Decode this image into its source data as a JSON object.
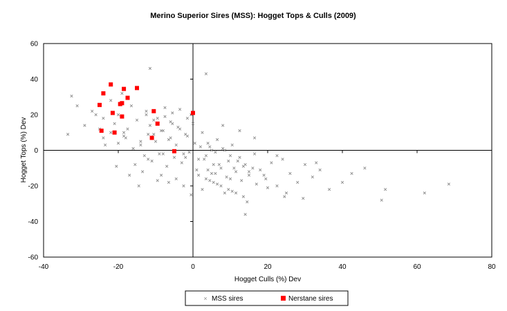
{
  "chart_data": {
    "type": "scatter",
    "title": "Merino Superior Sires (MSS): Hogget Tops & Culls  (2009)",
    "xlabel": "Hogget Culls (%) Dev",
    "ylabel": "Hogget Tops (%) Dev",
    "xlim": [
      -40,
      80
    ],
    "ylim": [
      -60,
      60
    ],
    "x_ticks": [
      "-40",
      "-20",
      "0",
      "20",
      "40",
      "60",
      "80"
    ],
    "y_ticks": [
      "60",
      "40",
      "20",
      "0",
      "-20",
      "-40",
      "-60"
    ],
    "grid": false,
    "legend_position": "bottom",
    "series": [
      {
        "name": "MSS sires",
        "marker": "x",
        "color": "#8c8c8c",
        "x": [
          -32.5,
          -31.0,
          -33.5,
          -29.0,
          -27.0,
          -25.0,
          -24.0,
          -23.5,
          -22.0,
          -21.0,
          -20.0,
          -19.0,
          -18.5,
          -17.5,
          -16.5,
          -15.0,
          -14.0,
          -12.5,
          -11.5,
          -10.5,
          -9.5,
          -8.5,
          -7.5,
          -6.5,
          -5.5,
          -4.5,
          -3.5,
          -2.5,
          -1.5,
          -0.5,
          0.5,
          1.5,
          2.5,
          3.5,
          4.5,
          5.5,
          6.5,
          7.5,
          8.5,
          9.5,
          10.5,
          11.5,
          12.5,
          13.5,
          15.0,
          16.5,
          18.0,
          19.5,
          21.0,
          22.5,
          24.0,
          26.0,
          28.0,
          30.0,
          32.0,
          34.0,
          36.5,
          40.0,
          42.5,
          46.0,
          50.5,
          51.5,
          62.0,
          68.5,
          -13.0,
          -11.0,
          -9.0,
          -7.0,
          -5.0,
          -3.0,
          -1.0,
          1.0,
          3.0,
          5.0,
          7.0,
          9.0,
          11.0,
          13.0,
          15.0,
          17.0,
          19.0,
          -20.0,
          -18.0,
          -16.0,
          -14.0,
          -12.0,
          -10.0,
          -8.0,
          -6.0,
          -4.0,
          -2.0,
          0.0,
          2.0,
          4.0,
          6.0,
          8.0,
          10.0,
          12.0,
          14.0,
          16.0,
          -24.0,
          -22.0,
          -26.0,
          -15.5,
          -13.5,
          -8.5,
          -6.5,
          -4.5,
          -2.5,
          2.5,
          4.5,
          6.5,
          8.5,
          10.5,
          -12.5,
          -10.5,
          -7.5,
          -5.5,
          -3.5,
          -1.5,
          1.5,
          3.5,
          5.5,
          7.5,
          9.5,
          11.5,
          13.5,
          -17.0,
          -9.5,
          -0.5,
          5.0,
          14.0,
          20.0,
          25.0,
          29.5,
          33.0,
          -11.5,
          -6.0,
          3.5,
          8.0,
          12.5,
          16.5,
          22.5,
          14.5,
          -18.5,
          -20.5,
          -14.5,
          4.0,
          -12.0,
          -8.0,
          -2.0,
          6.0,
          10.0,
          24.5
        ],
        "y": [
          30.5,
          25.0,
          9.0,
          14.0,
          22.0,
          12.0,
          18.0,
          3.0,
          28.0,
          15.0,
          20.0,
          32.0,
          8.0,
          12.0,
          25.0,
          17.0,
          5.0,
          22.0,
          14.0,
          9.0,
          18.0,
          11.0,
          24.0,
          6.0,
          15.0,
          3.0,
          12.0,
          -2.0,
          8.0,
          20.0,
          4.0,
          -5.0,
          10.0,
          -3.0,
          2.0,
          -8.0,
          6.0,
          -10.0,
          0.0,
          -6.0,
          3.0,
          -12.0,
          -4.0,
          -9.0,
          -14.0,
          -2.0,
          -11.0,
          -16.0,
          -7.0,
          -20.0,
          -5.0,
          -13.0,
          -18.0,
          -8.0,
          -15.0,
          -11.0,
          -22.0,
          -18.0,
          -13.0,
          -10.0,
          -28.0,
          -22.0,
          -24.0,
          -19.0,
          -3.0,
          -6.0,
          -2.0,
          -9.0,
          -4.0,
          -7.0,
          -1.0,
          -11.0,
          -5.0,
          -13.0,
          -8.0,
          -15.0,
          -10.0,
          -17.0,
          -12.0,
          -19.0,
          -14.0,
          4.0,
          7.0,
          1.0,
          3.0,
          9.0,
          5.0,
          11.0,
          7.0,
          13.0,
          9.0,
          15.0,
          2.0,
          4.0,
          -1.0,
          1.0,
          -3.0,
          -6.0,
          -8.0,
          -10.0,
          7.0,
          10.0,
          20.0,
          -8.0,
          -12.0,
          -14.0,
          -18.0,
          -16.0,
          -20.0,
          -22.0,
          -17.0,
          -19.0,
          -24.0,
          -23.0,
          20.0,
          17.0,
          19.0,
          21.0,
          23.0,
          18.0,
          -14.0,
          -16.0,
          -18.0,
          -20.0,
          -22.0,
          -24.0,
          -26.0,
          -14.0,
          -17.0,
          -25.0,
          0.0,
          -36.0,
          -21.0,
          -24.0,
          -27.0,
          -7.0,
          46.0,
          16.0,
          43.0,
          14.0,
          11.0,
          7.0,
          -3.0,
          -29.0,
          10.0,
          -9.0,
          -20.0,
          -11.0,
          -5.0,
          -2.0,
          -4.0,
          -13.0,
          -16.0,
          -26.0
        ]
      },
      {
        "name": "Nerstane sires",
        "marker": "square",
        "color": "#ff0000",
        "x": [
          -25.0,
          -24.0,
          -22.0,
          -21.5,
          -21.0,
          -19.5,
          -19.0,
          -19.0,
          -18.5,
          -17.5,
          -15.0,
          -11.0,
          -10.5,
          -9.5,
          -5.0,
          0.0,
          -24.5
        ],
        "y": [
          25.5,
          32.0,
          37.0,
          21.0,
          10.0,
          26.0,
          26.5,
          19.0,
          34.5,
          29.5,
          35.0,
          7.0,
          22.0,
          15.0,
          -0.5,
          21.0,
          11.0
        ]
      }
    ]
  }
}
